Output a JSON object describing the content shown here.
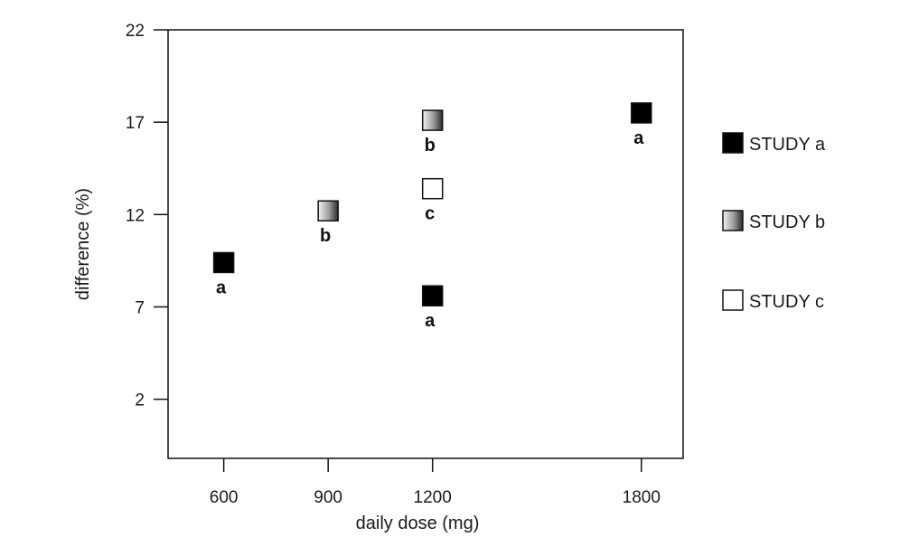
{
  "chart_data": {
    "type": "scatter",
    "xlabel": "daily dose (mg)",
    "ylabel": "difference (%)",
    "x_ticks": [
      600,
      900,
      1200,
      1800
    ],
    "y_ticks": [
      2,
      7,
      12,
      17,
      22
    ],
    "xlim": [
      440,
      1920
    ],
    "ylim": [
      -1.2,
      22
    ],
    "grid": false,
    "legend_position": "right",
    "series": [
      {
        "name": "STUDY a",
        "style": "filled",
        "color": "#000000",
        "points": [
          {
            "x": 600,
            "y": 9.4,
            "label": "a"
          },
          {
            "x": 1200,
            "y": 7.6,
            "label": "a"
          },
          {
            "x": 1800,
            "y": 17.5,
            "label": "a"
          }
        ]
      },
      {
        "name": "STUDY b",
        "style": "gradient",
        "color": "#808080",
        "points": [
          {
            "x": 900,
            "y": 12.2,
            "label": "b"
          },
          {
            "x": 1200,
            "y": 17.1,
            "label": "b"
          }
        ]
      },
      {
        "name": "STUDY c",
        "style": "hollow",
        "color": "#ffffff",
        "points": [
          {
            "x": 1200,
            "y": 13.4,
            "label": "c"
          }
        ]
      }
    ]
  }
}
